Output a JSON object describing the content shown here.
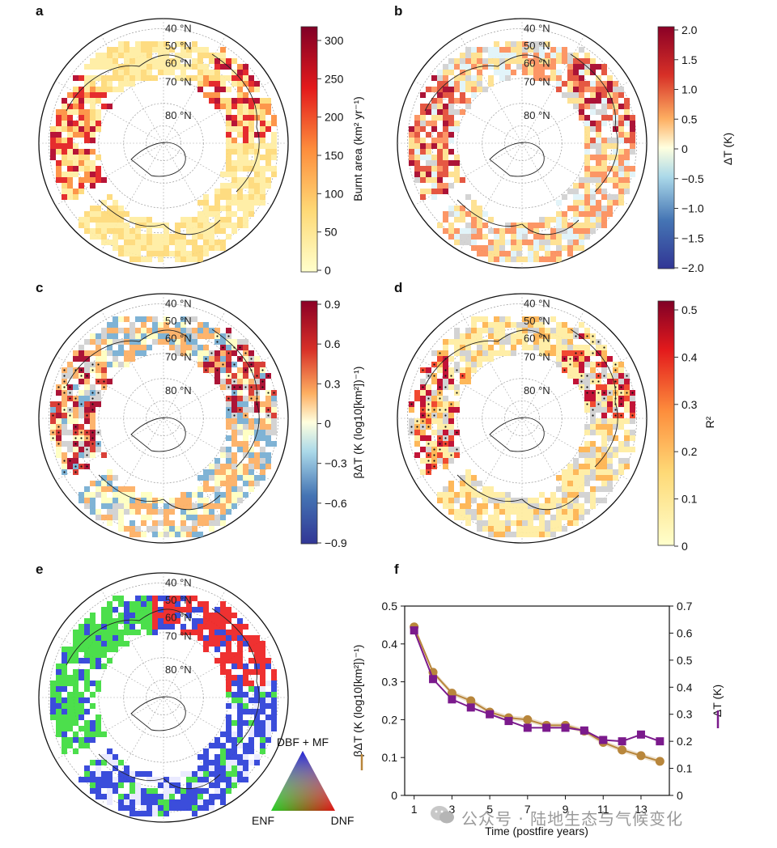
{
  "panels": {
    "a": {
      "letter": "a",
      "colorbar": {
        "label": "Burnt area (km² yr⁻¹)",
        "ticks": [
          "300",
          "250",
          "200",
          "150",
          "100",
          "50",
          "0"
        ]
      }
    },
    "b": {
      "letter": "b",
      "colorbar": {
        "label": "ΔT (K)",
        "ticks": [
          "2.0",
          "1.5",
          "1.0",
          "0.5",
          "0",
          "−0.5",
          "−1.0",
          "−1.5",
          "−2.0"
        ]
      }
    },
    "c": {
      "letter": "c",
      "colorbar": {
        "label": "βΔT (K (log10[km²])⁻¹)",
        "ticks": [
          "0.9",
          "0.6",
          "0.3",
          "0",
          "−0.3",
          "−0.6",
          "−0.9"
        ]
      }
    },
    "d": {
      "letter": "d",
      "colorbar": {
        "label": "R²",
        "ticks": [
          "0.5",
          "0.4",
          "0.3",
          "0.2",
          "0.1",
          "0"
        ]
      }
    },
    "e": {
      "letter": "e",
      "ternary": {
        "top": "DBF + MF",
        "left": "ENF",
        "right": "DNF"
      }
    },
    "f": {
      "letter": "f"
    }
  },
  "latitude_labels": [
    "40 °N",
    "50 °N",
    "60 °N",
    "70 °N",
    "80 °N"
  ],
  "colors": {
    "beta_line": "#b8863b",
    "dT_line": "#7b1a8c",
    "panel_bg": "#ffffff"
  },
  "chart_data": {
    "type": "line",
    "xlabel": "Time (postfire years)",
    "x": [
      1,
      2,
      3,
      4,
      5,
      6,
      7,
      8,
      9,
      10,
      11,
      12,
      13,
      14
    ],
    "x_ticks": [
      "1",
      "3",
      "5",
      "7",
      "9",
      "11",
      "13"
    ],
    "ylabel_left": "βΔT (K (log10[km²])⁻¹)",
    "ylabel_right": "ΔT (K)",
    "ylim_left": [
      0,
      0.5
    ],
    "ylim_right": [
      0,
      0.7
    ],
    "yticks_left": [
      "0",
      "0.1",
      "0.2",
      "0.3",
      "0.4",
      "0.5"
    ],
    "yticks_right": [
      "0",
      "0.1",
      "0.2",
      "0.3",
      "0.4",
      "0.5",
      "0.6",
      "0.7"
    ],
    "series": [
      {
        "axis": "left",
        "color": "#b8863b",
        "marker": "circle",
        "values": [
          0.445,
          0.325,
          0.27,
          0.25,
          0.22,
          0.205,
          0.2,
          0.185,
          0.185,
          0.17,
          0.14,
          0.12,
          0.105,
          0.09
        ]
      },
      {
        "axis": "right",
        "color": "#7b1a8c",
        "marker": "square",
        "values": [
          0.61,
          0.43,
          0.355,
          0.325,
          0.3,
          0.275,
          0.25,
          0.25,
          0.25,
          0.24,
          0.205,
          0.2,
          0.225,
          0.2
        ]
      }
    ]
  },
  "watermark": "公众号 · 陆地生态与气候变化"
}
